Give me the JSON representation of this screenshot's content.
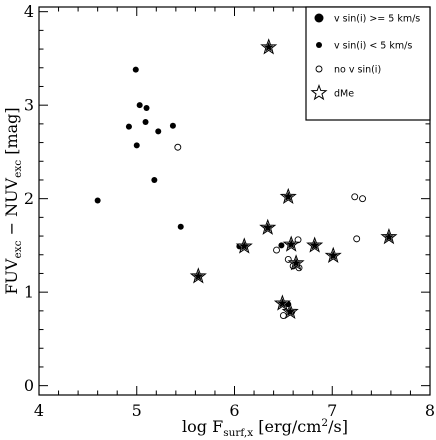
{
  "chart_data": {
    "type": "scatter",
    "xlabel": {
      "prefix": "log F",
      "sub": "surf,x",
      "suffix": " [erg/cm",
      "sup": "2",
      "end": "/s]"
    },
    "ylabel": {
      "p1": "FUV",
      "s1": "exc",
      "p2": " − NUV",
      "s2": "exc",
      "p3": " [mag]"
    },
    "xlim": [
      4,
      8
    ],
    "ylim": [
      -0.1,
      4.05
    ],
    "xticks": [
      "4",
      "5",
      "6",
      "7",
      "8"
    ],
    "yticks": [
      "0",
      "1",
      "2",
      "3",
      "4"
    ],
    "xtick_values": [
      4,
      5,
      6,
      7,
      8
    ],
    "ytick_values": [
      0,
      1,
      2,
      3,
      4
    ],
    "legend_position": "top-right",
    "legend": [
      {
        "label": "v sin(i) >= 5 km/s",
        "marker": "filled-circle-large"
      },
      {
        "label": "v sin(i) < 5 km/s",
        "marker": "filled-circle-small"
      },
      {
        "label": "no v sin(i)",
        "marker": "open-circle"
      },
      {
        "label": "dMe",
        "marker": "star"
      }
    ],
    "series": [
      {
        "marker": "filled-circle-small",
        "points": [
          [
            4.6,
            1.98
          ],
          [
            4.92,
            2.77
          ],
          [
            4.99,
            3.38
          ],
          [
            5.0,
            2.57
          ],
          [
            5.03,
            3.0
          ],
          [
            5.09,
            2.82
          ],
          [
            5.1,
            2.97
          ],
          [
            5.18,
            2.2
          ],
          [
            5.22,
            2.72
          ],
          [
            5.37,
            2.78
          ],
          [
            5.45,
            1.7
          ],
          [
            6.05,
            1.49
          ],
          [
            6.48,
            1.5
          ],
          [
            6.55,
            0.87
          ],
          [
            6.59,
            0.79
          ]
        ]
      },
      {
        "marker": "open-circle",
        "points": [
          [
            5.42,
            2.55
          ],
          [
            6.43,
            1.45
          ],
          [
            6.5,
            0.75
          ],
          [
            6.55,
            1.35
          ],
          [
            6.6,
            1.28
          ],
          [
            6.65,
            1.56
          ],
          [
            6.66,
            1.26
          ],
          [
            7.23,
            2.02
          ],
          [
            7.25,
            1.57
          ],
          [
            7.31,
            2.0
          ]
        ]
      },
      {
        "marker": "star",
        "points": [
          [
            5.63,
            1.17
          ],
          [
            6.1,
            1.49
          ],
          [
            6.34,
            1.69
          ],
          [
            6.35,
            3.62
          ],
          [
            6.49,
            0.88
          ],
          [
            6.55,
            2.02
          ],
          [
            6.57,
            0.79
          ],
          [
            6.58,
            1.51
          ],
          [
            6.63,
            1.31
          ],
          [
            6.82,
            1.5
          ],
          [
            7.01,
            1.39
          ],
          [
            7.58,
            1.59
          ]
        ]
      }
    ]
  }
}
